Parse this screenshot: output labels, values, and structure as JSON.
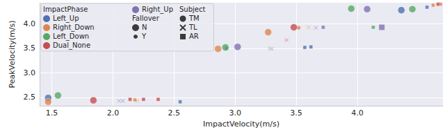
{
  "chart_data": {
    "type": "scatter",
    "x_label": "ImpactVelocity(m/s)",
    "y_label": "PeakVelocity(m/s)",
    "xlim": [
      1.4,
      4.7
    ],
    "xticks": [
      1.5,
      {
        "value": 2,
        "label": "2.0"
      },
      2.5,
      {
        "value": 3,
        "label": "3.0"
      },
      3.5,
      {
        "value": 4,
        "label": "4.0"
      }
    ],
    "ylim": [
      2.33,
      4.43
    ],
    "yticks": [
      2.5,
      {
        "value": 3,
        "label": "3.0"
      },
      3.5,
      {
        "value": 4,
        "label": "4.0"
      }
    ],
    "grid": true,
    "legend": "upper left",
    "color_legend_title": "ImpactPhase",
    "size_legend": {
      "title": "Fallover",
      "entries": [
        "N",
        "Y"
      ]
    },
    "marker_legend": {
      "title": "Subject",
      "entries": [
        {
          "label": "TM",
          "marker": "circle"
        },
        {
          "label": "TL",
          "marker": "cross"
        },
        {
          "label": "AR",
          "marker": "square"
        }
      ]
    },
    "series": [
      {
        "name": "Left_Up",
        "color": "#4c72b0",
        "x": [
          1.47,
          2.08,
          2.55,
          2.93,
          3.57,
          3.62,
          4.36,
          4.57
        ],
        "y": [
          2.49,
          2.43,
          2.41,
          3.5,
          3.52,
          3.53,
          4.28,
          4.34
        ],
        "fallover": [
          "N",
          "Y",
          "Y",
          "Y",
          "Y",
          "Y",
          "N",
          "Y"
        ],
        "subject": [
          "TM",
          "TL",
          "AR",
          "TM",
          "AR",
          "AR",
          "TM",
          "AR"
        ]
      },
      {
        "name": "Right_Down",
        "color": "#dd8452",
        "x": [
          1.47,
          2.2,
          2.18,
          2.86,
          3.27,
          3.6,
          3.52,
          4.62,
          4.68
        ],
        "y": [
          2.41,
          2.43,
          2.45,
          3.49,
          3.83,
          3.93,
          3.92,
          4.38,
          4.4
        ],
        "fallover": [
          "N",
          "Y",
          "Y",
          "N",
          "N",
          "Y",
          "Y",
          "Y",
          "Y"
        ],
        "subject": [
          "TM",
          "TL",
          "AR",
          "TM",
          "TM",
          "TL",
          "TM",
          "AR",
          "AR"
        ]
      },
      {
        "name": "Left_Down",
        "color": "#55a868",
        "x": [
          1.55,
          2.92,
          3.28,
          3.95,
          4.13,
          4.45
        ],
        "y": [
          2.54,
          3.52,
          3.5,
          4.31,
          3.93,
          4.3
        ],
        "fallover": [
          "N",
          "N",
          "Y",
          "N",
          "Y",
          "N"
        ],
        "subject": [
          "TM",
          "TM",
          "TL",
          "TM",
          "AR",
          "TM"
        ]
      },
      {
        "name": "Dual_None",
        "color": "#c44e52",
        "x": [
          1.84,
          2.14,
          2.25,
          2.37,
          3.42,
          3.48,
          4.66
        ],
        "y": [
          2.44,
          2.46,
          2.46,
          2.46,
          3.67,
          3.93,
          4.4
        ],
        "fallover": [
          "N",
          "Y",
          "Y",
          "Y",
          "Y",
          "N",
          "Y"
        ],
        "subject": [
          "TM",
          "AR",
          "AR",
          "AR",
          "TL",
          "TM",
          "AR"
        ]
      },
      {
        "name": "Right_Up",
        "color": "#8172b3",
        "x": [
          2.05,
          3.02,
          3.3,
          3.66,
          3.72,
          4.08,
          4.2
        ],
        "y": [
          2.43,
          3.53,
          3.49,
          3.92,
          3.93,
          4.3,
          3.93
        ],
        "fallover": [
          "Y",
          "N",
          "Y",
          "Y",
          "Y",
          "N",
          "N"
        ],
        "subject": [
          "TL",
          "TM",
          "TL",
          "TL",
          "AR",
          "TM",
          "AR"
        ]
      }
    ]
  }
}
